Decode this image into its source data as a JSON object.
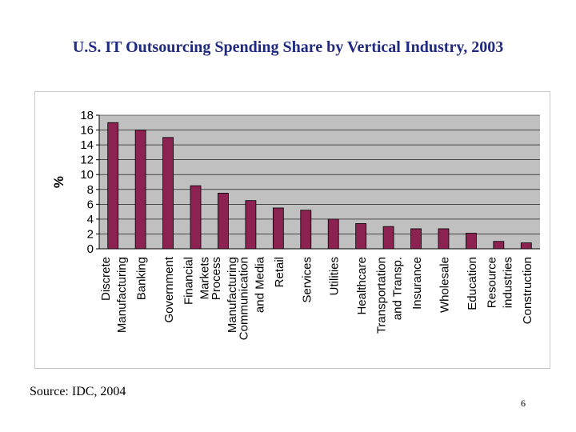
{
  "slide": {
    "title": "U.S. IT Outsourcing Spending Share by Vertical Industry, 2003",
    "source": "Source: IDC, 2004",
    "page_number": "6"
  },
  "colors": {
    "bar": "#8b2252",
    "plot_bg": "#c0c0c0",
    "title": "#1f2a80"
  },
  "chart_data": {
    "type": "bar",
    "title": "",
    "xlabel": "",
    "ylabel": "%",
    "ylim": [
      0,
      18
    ],
    "yticks": [
      0,
      2,
      4,
      6,
      8,
      10,
      12,
      14,
      16,
      18
    ],
    "grid": true,
    "categories": [
      [
        "Discrete",
        "Manufacturing"
      ],
      [
        "Banking"
      ],
      [
        "Government"
      ],
      [
        "Financial",
        "Markets"
      ],
      [
        "Process",
        "Manufacturing"
      ],
      [
        "Communication",
        "and Media"
      ],
      [
        "Retail"
      ],
      [
        "Services"
      ],
      [
        "Utilities"
      ],
      [
        "Healthcare"
      ],
      [
        "Transportation",
        "and Transp."
      ],
      [
        "Insurance"
      ],
      [
        "Wholesale"
      ],
      [
        "Education"
      ],
      [
        "Resource",
        "industries"
      ],
      [
        "Construction"
      ]
    ],
    "values": [
      17,
      16,
      15,
      8.5,
      7.5,
      6.5,
      5.5,
      5.2,
      4,
      3.4,
      3,
      2.7,
      2.7,
      2.1,
      1,
      0.8
    ]
  }
}
